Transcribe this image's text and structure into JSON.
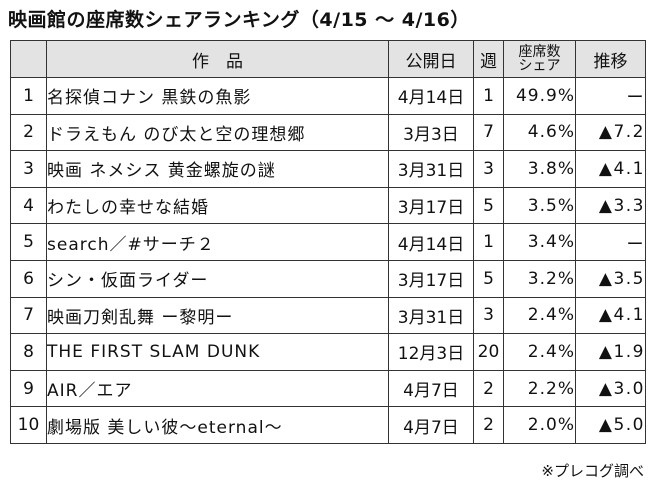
{
  "title": "映画館の座席数シェアランキング（4/15 ～ 4/16）",
  "headers": {
    "rank": "",
    "title": "作　品",
    "release": "公開日",
    "weeks": "週",
    "share_line1": "座席数",
    "share_line2": "シェア",
    "trend": "推移"
  },
  "rows": [
    {
      "rank": "1",
      "title": "名探偵コナン 黒鉄の魚影",
      "release": "4月14日",
      "weeks": "1",
      "share": "49.9%",
      "trend": "ー"
    },
    {
      "rank": "2",
      "title": "ドラえもん のび太と空の理想郷",
      "release": "3月3日",
      "weeks": "7",
      "share": "4.6%",
      "trend": "▲7.2"
    },
    {
      "rank": "3",
      "title": "映画 ネメシス 黄金螺旋の謎",
      "release": "3月31日",
      "weeks": "3",
      "share": "3.8%",
      "trend": "▲4.1"
    },
    {
      "rank": "4",
      "title": "わたしの幸せな結婚",
      "release": "3月17日",
      "weeks": "5",
      "share": "3.5%",
      "trend": "▲3.3"
    },
    {
      "rank": "5",
      "title": "search／#サーチ２",
      "release": "4月14日",
      "weeks": "1",
      "share": "3.4%",
      "trend": "ー"
    },
    {
      "rank": "6",
      "title": "シン・仮面ライダー",
      "release": "3月17日",
      "weeks": "5",
      "share": "3.2%",
      "trend": "▲3.5"
    },
    {
      "rank": "7",
      "title": "映画刀剣乱舞 ー黎明ー",
      "release": "3月31日",
      "weeks": "3",
      "share": "2.4%",
      "trend": "▲4.1"
    },
    {
      "rank": "8",
      "title": "THE FIRST SLAM DUNK",
      "release": "12月3日",
      "weeks": "20",
      "share": "2.4%",
      "trend": "▲1.9"
    },
    {
      "rank": "9",
      "title": "AIR／エア",
      "release": "4月7日",
      "weeks": "2",
      "share": "2.2%",
      "trend": "▲3.0"
    },
    {
      "rank": "10",
      "title": "劇場版 美しい彼～eternal～",
      "release": "4月7日",
      "weeks": "2",
      "share": "2.0%",
      "trend": "▲5.0"
    }
  ],
  "source": "※プレコグ調べ",
  "colors": {
    "header_bg": "#e3e3e3",
    "border": "#333333",
    "text": "#111111"
  }
}
